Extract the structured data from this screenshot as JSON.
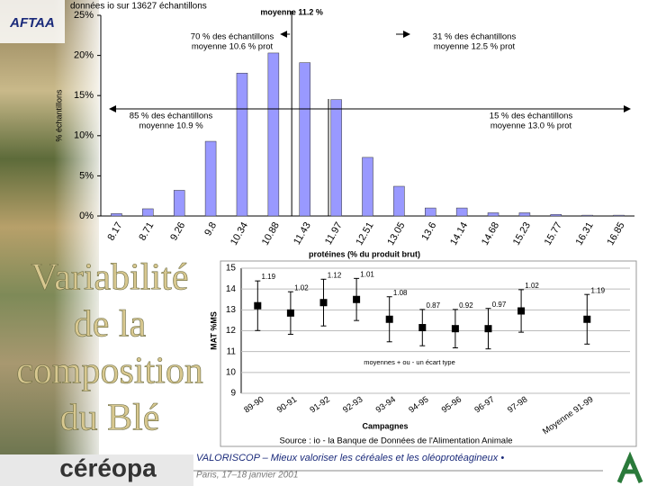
{
  "slide": {
    "title_lines": [
      "Variabilité",
      "de la",
      "composition",
      "du Blé"
    ],
    "logo_top": "AFTAA",
    "logo_bottom": "céréopa",
    "footer_line1": "VALORISCOP – Mieux valoriser les céréales et les oléoprotéagineux •",
    "footer_line2": "Paris, 17–18 janvier 2001"
  },
  "chart_data": [
    {
      "type": "bar",
      "title": "données io sur 13627 échantillons",
      "y_label": "% échantillons",
      "x_label": "protéines (% du produit brut)",
      "categories": [
        "8.17",
        "8.71",
        "9.26",
        "9.8",
        "10.34",
        "10.88",
        "11.43",
        "11.97",
        "12.51",
        "13.05",
        "13.6",
        "14.14",
        "14.68",
        "15.23",
        "15.77",
        "16.31",
        "16.85"
      ],
      "values": [
        0.3,
        0.9,
        3.2,
        9.3,
        17.8,
        20.3,
        19.1,
        14.5,
        7.3,
        3.7,
        1.0,
        1.0,
        0.4,
        0.4,
        0.2,
        0.1,
        0.1
      ],
      "color": "#9999ff",
      "ylim": [
        0,
        25
      ],
      "yticks": [
        {
          "value": 0,
          "label": "0%"
        },
        {
          "value": 5,
          "label": "5%"
        },
        {
          "value": 10,
          "label": "10%"
        },
        {
          "value": 15,
          "label": "15%"
        },
        {
          "value": 20,
          "label": "20%"
        },
        {
          "value": 25,
          "label": "25%"
        }
      ],
      "mean": 11.2,
      "annotations": [
        "moyenne 11.2 %",
        "70 % des échantillons",
        "moyenne 10.6 % prot",
        "31 % des échantillons",
        "moyenne 12.5 % prot",
        "85 % des échantillons",
        "moyenne 10.9 %",
        "15 % des échantillons",
        "moyenne 13.0 % prot"
      ]
    },
    {
      "type": "errorbar",
      "y_label": "MAT %MS",
      "x_label": "Campagnes",
      "categories": [
        "89-90",
        "90-91",
        "91-92",
        "92-93",
        "93-94",
        "94-95",
        "95-96",
        "96-97",
        "97-98",
        null,
        "Moyenne 91-99"
      ],
      "values": [
        13.2,
        12.85,
        13.35,
        13.5,
        12.55,
        12.15,
        12.1,
        12.1,
        12.95,
        null,
        12.55
      ],
      "errors": [
        1.19,
        1.02,
        1.12,
        1.01,
        1.08,
        0.87,
        0.92,
        0.97,
        1.02,
        null,
        1.19
      ],
      "ylim": [
        9,
        15
      ],
      "yticks": [
        9,
        10,
        11,
        12,
        13,
        14,
        15
      ],
      "grid": true,
      "legend": "moyennes + ou - un écart type",
      "source": "Source : io - la Banque de Données de l'Alimentation Animale"
    }
  ]
}
